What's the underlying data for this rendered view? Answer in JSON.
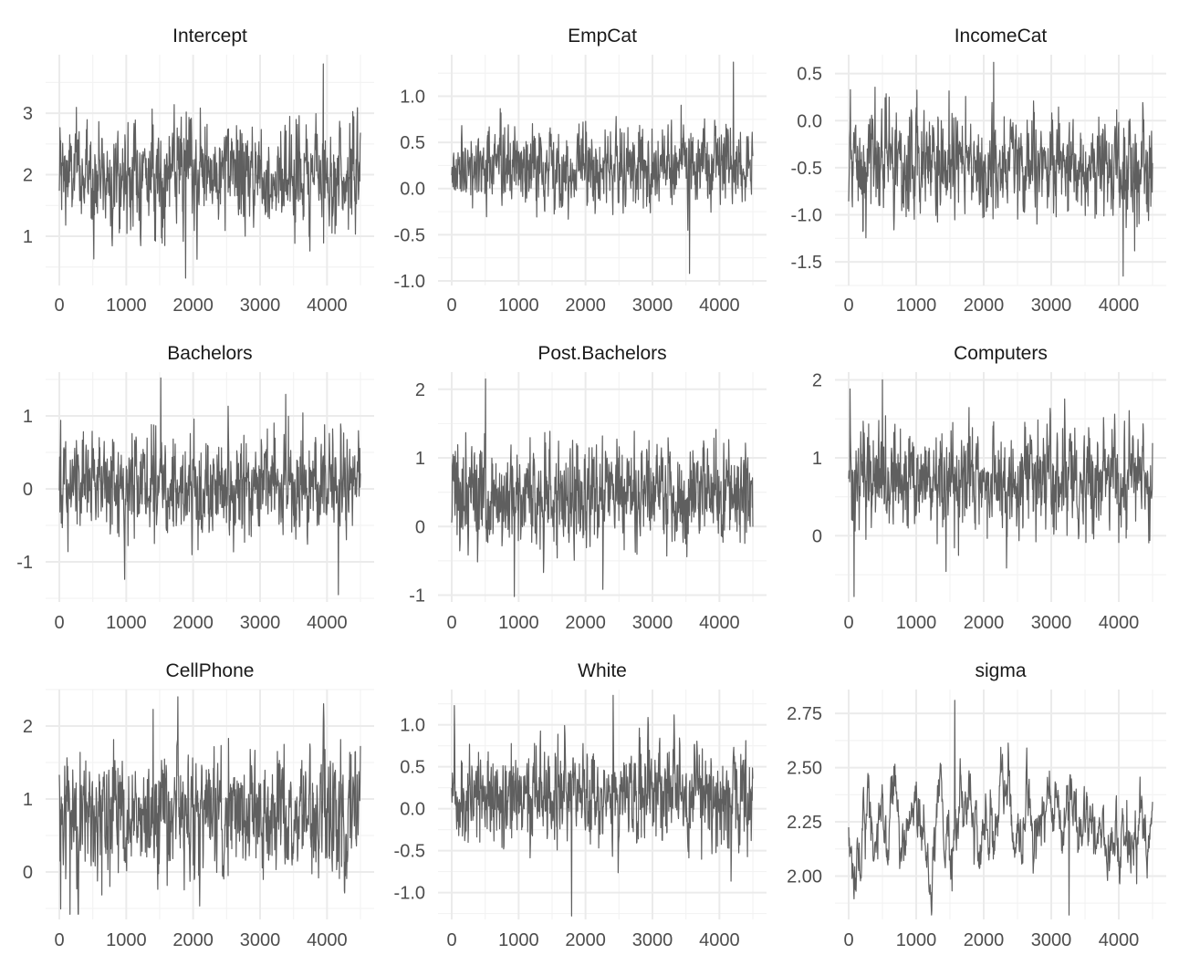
{
  "chart_data": [
    {
      "type": "line",
      "title": "Intercept",
      "x_range": [
        0,
        4500
      ],
      "x_ticks": [
        0,
        1000,
        2000,
        3000,
        4000
      ],
      "ylim": [
        0.2,
        3.95
      ],
      "y_ticks": [
        1,
        2,
        3
      ],
      "y_tick_labels": [
        "1",
        "2",
        "3"
      ],
      "series": [
        {
          "mean": 2.0,
          "sd": 0.42,
          "min": 0.32,
          "max": 3.8,
          "n": 4500
        }
      ],
      "grid": true,
      "line_color": "#5f5f5f"
    },
    {
      "type": "line",
      "title": "EmpCat",
      "x_range": [
        0,
        4500
      ],
      "x_ticks": [
        0,
        1000,
        2000,
        3000,
        4000
      ],
      "ylim": [
        -1.05,
        1.45
      ],
      "y_ticks": [
        -1.0,
        -0.5,
        0.0,
        0.5,
        1.0
      ],
      "y_tick_labels": [
        "-1.0",
        "-0.5",
        "0.0",
        "0.5",
        "1.0"
      ],
      "series": [
        {
          "mean": 0.23,
          "sd": 0.22,
          "min": -0.92,
          "max": 1.37,
          "n": 4500
        }
      ],
      "grid": true,
      "line_color": "#5f5f5f"
    },
    {
      "type": "line",
      "title": "IncomeCat",
      "x_range": [
        0,
        4500
      ],
      "x_ticks": [
        0,
        1000,
        2000,
        3000,
        4000
      ],
      "ylim": [
        -1.75,
        0.7
      ],
      "y_ticks": [
        -1.5,
        -1.0,
        -0.5,
        0.0,
        0.5
      ],
      "y_tick_labels": [
        "-1.5",
        "-1.0",
        "-0.5",
        "0.0",
        "0.5"
      ],
      "series": [
        {
          "mean": -0.5,
          "sd": 0.28,
          "min": -1.65,
          "max": 0.62,
          "n": 4500
        }
      ],
      "grid": true,
      "line_color": "#5f5f5f"
    },
    {
      "type": "line",
      "title": "Bachelors",
      "x_range": [
        0,
        4500
      ],
      "x_ticks": [
        0,
        1000,
        2000,
        3000,
        4000
      ],
      "ylim": [
        -1.55,
        1.6
      ],
      "y_ticks": [
        -1,
        0,
        1
      ],
      "y_tick_labels": [
        "-1",
        "0",
        "1"
      ],
      "series": [
        {
          "mean": 0.05,
          "sd": 0.35,
          "min": -1.45,
          "max": 1.52,
          "n": 4500
        }
      ],
      "grid": true,
      "line_color": "#5f5f5f"
    },
    {
      "type": "line",
      "title": "Post.Bachelors",
      "x_range": [
        0,
        4500
      ],
      "x_ticks": [
        0,
        1000,
        2000,
        3000,
        4000
      ],
      "ylim": [
        -1.1,
        2.25
      ],
      "y_ticks": [
        -1,
        0,
        1,
        2
      ],
      "y_tick_labels": [
        "-1",
        "0",
        "1",
        "2"
      ],
      "series": [
        {
          "mean": 0.45,
          "sd": 0.4,
          "min": -1.02,
          "max": 2.15,
          "n": 4500
        }
      ],
      "grid": true,
      "line_color": "#5f5f5f"
    },
    {
      "type": "line",
      "title": "Computers",
      "x_range": [
        0,
        4500
      ],
      "x_ticks": [
        0,
        1000,
        2000,
        3000,
        4000
      ],
      "ylim": [
        -0.85,
        2.1
      ],
      "y_ticks": [
        0,
        1,
        2
      ],
      "y_tick_labels": [
        "0",
        "1",
        "2"
      ],
      "series": [
        {
          "mean": 0.72,
          "sd": 0.33,
          "min": -0.78,
          "max": 2.0,
          "n": 4500
        }
      ],
      "grid": true,
      "line_color": "#5f5f5f"
    },
    {
      "type": "line",
      "title": "CellPhone",
      "x_range": [
        0,
        4500
      ],
      "x_ticks": [
        0,
        1000,
        2000,
        3000,
        4000
      ],
      "ylim": [
        -0.65,
        2.5
      ],
      "y_ticks": [
        0,
        1,
        2
      ],
      "y_tick_labels": [
        "0",
        "1",
        "2"
      ],
      "series": [
        {
          "mean": 0.78,
          "sd": 0.42,
          "min": -0.58,
          "max": 2.4,
          "n": 4500
        }
      ],
      "grid": true,
      "line_color": "#5f5f5f"
    },
    {
      "type": "line",
      "title": "White",
      "x_range": [
        0,
        4500
      ],
      "x_ticks": [
        0,
        1000,
        2000,
        3000,
        4000
      ],
      "ylim": [
        -1.32,
        1.42
      ],
      "y_ticks": [
        -1.0,
        -0.5,
        0.0,
        0.5,
        1.0
      ],
      "y_tick_labels": [
        "-1.0",
        "-0.5",
        "0.0",
        "0.5",
        "1.0"
      ],
      "series": [
        {
          "mean": 0.12,
          "sd": 0.3,
          "min": -1.28,
          "max": 1.35,
          "n": 4500
        }
      ],
      "grid": true,
      "line_color": "#5f5f5f"
    },
    {
      "type": "line",
      "title": "sigma",
      "x_range": [
        0,
        4500
      ],
      "x_ticks": [
        0,
        1000,
        2000,
        3000,
        4000
      ],
      "ylim": [
        1.8,
        2.86
      ],
      "y_ticks": [
        2.0,
        2.25,
        2.5,
        2.75
      ],
      "y_tick_labels": [
        "2.00",
        "2.25",
        "2.50",
        "2.75"
      ],
      "series": [
        {
          "mean": 2.22,
          "sd": 0.12,
          "min": 1.82,
          "max": 2.81,
          "n": 4500
        }
      ],
      "grid": true,
      "line_color": "#5f5f5f"
    }
  ]
}
